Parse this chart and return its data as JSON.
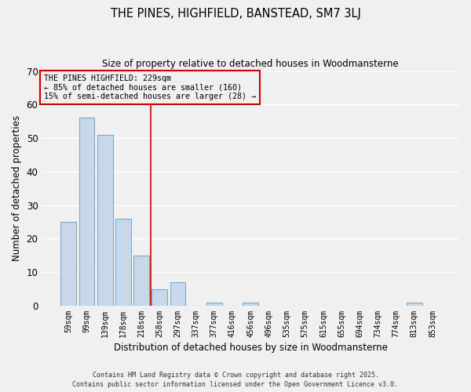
{
  "title": "THE PINES, HIGHFIELD, BANSTEAD, SM7 3LJ",
  "subtitle": "Size of property relative to detached houses in Woodmansterne",
  "bar_color": "#c8d8ea",
  "bar_edge_color": "#7aaac8",
  "categories": [
    "59sqm",
    "99sqm",
    "139sqm",
    "178sqm",
    "218sqm",
    "258sqm",
    "297sqm",
    "337sqm",
    "377sqm",
    "416sqm",
    "456sqm",
    "496sqm",
    "535sqm",
    "575sqm",
    "615sqm",
    "655sqm",
    "694sqm",
    "734sqm",
    "774sqm",
    "813sqm",
    "853sqm"
  ],
  "values": [
    25,
    56,
    51,
    26,
    15,
    5,
    7,
    0,
    1,
    0,
    1,
    0,
    0,
    0,
    0,
    0,
    0,
    0,
    0,
    1,
    0
  ],
  "ylim": [
    0,
    70
  ],
  "yticks": [
    0,
    10,
    20,
    30,
    40,
    50,
    60,
    70
  ],
  "ylabel": "Number of detached properties",
  "xlabel": "Distribution of detached houses by size in Woodmansterne",
  "annotation_title": "THE PINES HIGHFIELD: 229sqm",
  "annotation_line1": "← 85% of detached houses are smaller (160)",
  "annotation_line2": "15% of semi-detached houses are larger (28) →",
  "vline_position": 4.5,
  "vline_color": "#cc0000",
  "annotation_box_edge_color": "#cc0000",
  "footer_line1": "Contains HM Land Registry data © Crown copyright and database right 2025.",
  "footer_line2": "Contains public sector information licensed under the Open Government Licence v3.0.",
  "bg_color": "#f0f0f0",
  "grid_color": "#ffffff"
}
